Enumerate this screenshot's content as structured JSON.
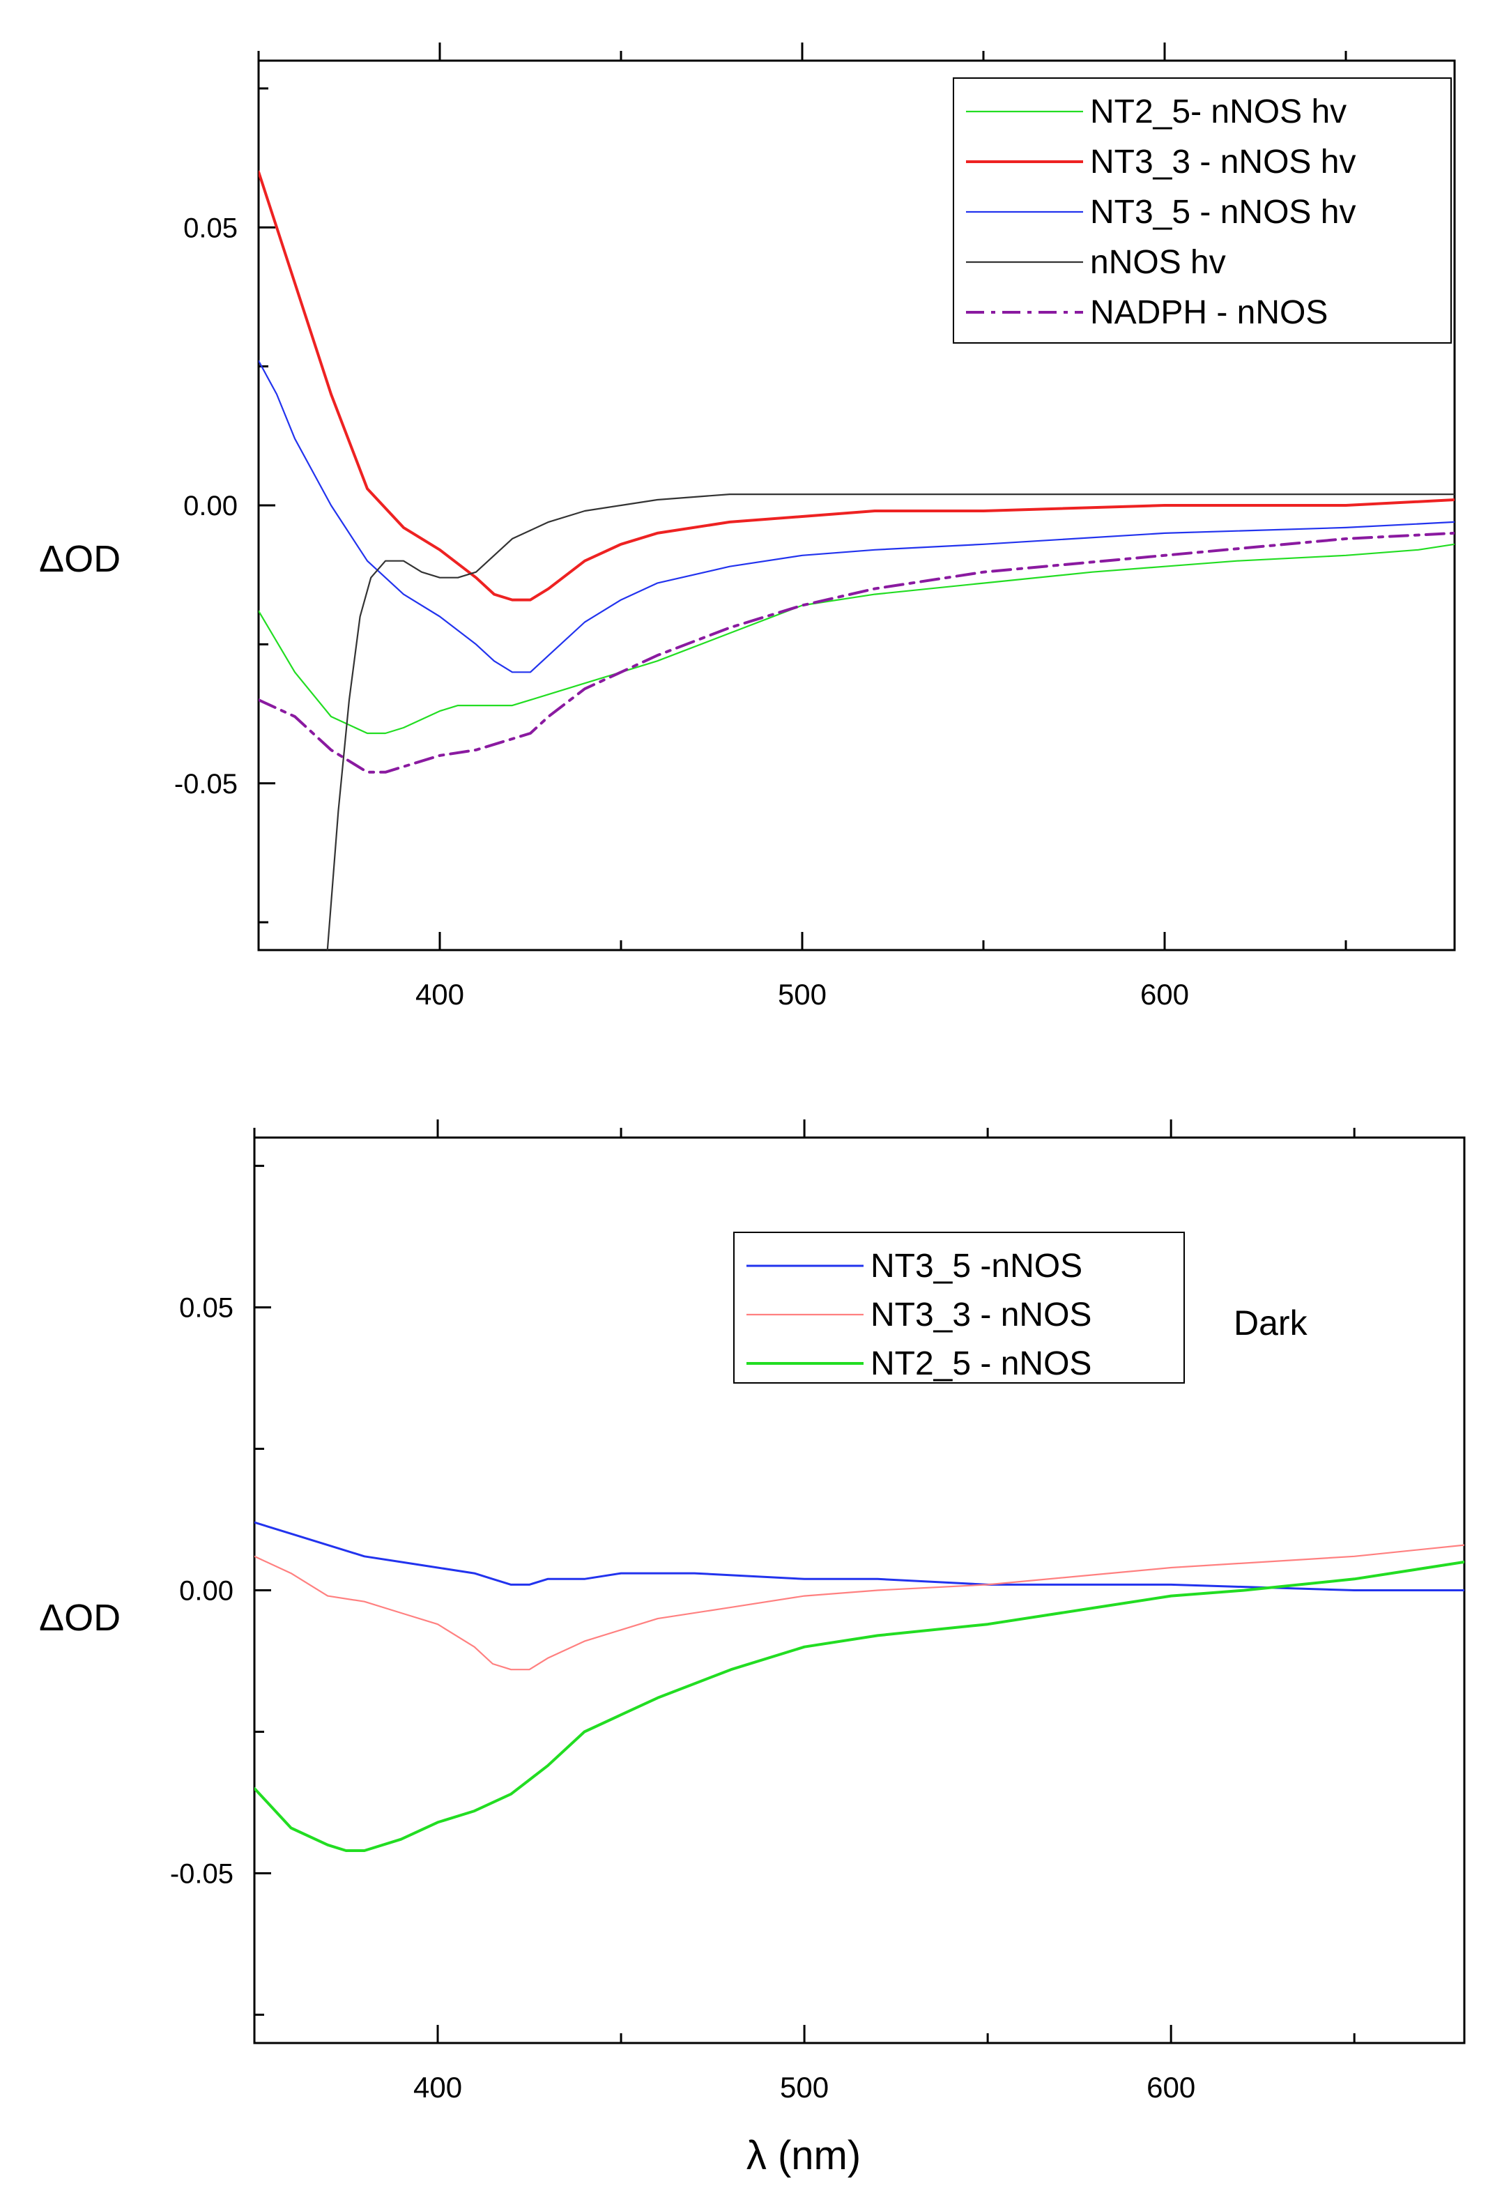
{
  "chart_data": [
    {
      "type": "line",
      "title": "",
      "xlabel": "",
      "ylabel": "ΔOD",
      "xlim": [
        350,
        680
      ],
      "ylim": [
        -0.08,
        0.08
      ],
      "xticks": [
        400,
        500,
        600
      ],
      "yticks": [
        0.05,
        0.0,
        -0.05
      ],
      "ytick_labels": [
        "0.05",
        "0.00",
        "-0.05"
      ],
      "grid": false,
      "legend_position": "top-right",
      "annotation": "",
      "series": [
        {
          "name": "NT2_5- nNOS hv",
          "color": "#22dd22",
          "style": "solid",
          "width": "thin",
          "x": [
            350,
            360,
            370,
            380,
            385,
            390,
            400,
            405,
            410,
            420,
            430,
            440,
            450,
            460,
            480,
            500,
            520,
            550,
            580,
            600,
            620,
            650,
            670,
            680
          ],
          "y": [
            -0.019,
            -0.03,
            -0.038,
            -0.041,
            -0.041,
            -0.04,
            -0.037,
            -0.036,
            -0.036,
            -0.036,
            -0.034,
            -0.032,
            -0.03,
            -0.028,
            -0.023,
            -0.018,
            -0.016,
            -0.014,
            -0.012,
            -0.011,
            -0.01,
            -0.009,
            -0.008,
            -0.007
          ]
        },
        {
          "name": "NT3_3 - nNOS hv",
          "color": "#ee2222",
          "style": "solid",
          "width": "thick",
          "x": [
            350,
            355,
            360,
            370,
            380,
            390,
            400,
            410,
            415,
            420,
            425,
            430,
            440,
            450,
            460,
            480,
            500,
            520,
            550,
            600,
            650,
            680
          ],
          "y": [
            0.06,
            0.05,
            0.04,
            0.02,
            0.003,
            -0.004,
            -0.008,
            -0.013,
            -0.016,
            -0.017,
            -0.017,
            -0.015,
            -0.01,
            -0.007,
            -0.005,
            -0.003,
            -0.002,
            -0.001,
            -0.001,
            0.0,
            0.0,
            0.001
          ]
        },
        {
          "name": "NT3_5 - nNOS hv",
          "color": "#2233ee",
          "style": "solid",
          "width": "thin",
          "x": [
            350,
            355,
            360,
            370,
            380,
            390,
            400,
            410,
            415,
            420,
            425,
            430,
            440,
            450,
            460,
            480,
            500,
            520,
            550,
            600,
            650,
            680
          ],
          "y": [
            0.026,
            0.02,
            0.012,
            0.0,
            -0.01,
            -0.016,
            -0.02,
            -0.025,
            -0.028,
            -0.03,
            -0.03,
            -0.027,
            -0.021,
            -0.017,
            -0.014,
            -0.011,
            -0.009,
            -0.008,
            -0.007,
            -0.005,
            -0.004,
            -0.003
          ]
        },
        {
          "name": "nNOS hv",
          "color": "#333333",
          "style": "solid",
          "width": "thin",
          "x": [
            369,
            372,
            375,
            378,
            381,
            385,
            390,
            395,
            400,
            405,
            410,
            415,
            420,
            430,
            440,
            450,
            460,
            480,
            500,
            550,
            600,
            650,
            680
          ],
          "y": [
            -0.08,
            -0.055,
            -0.035,
            -0.02,
            -0.013,
            -0.01,
            -0.01,
            -0.012,
            -0.013,
            -0.013,
            -0.012,
            -0.009,
            -0.006,
            -0.003,
            -0.001,
            0.0,
            0.001,
            0.002,
            0.002,
            0.002,
            0.002,
            0.002,
            0.002
          ]
        },
        {
          "name": "NADPH - nNOS",
          "color": "#8a1aa0",
          "style": "dashdot",
          "width": "thick",
          "x": [
            350,
            360,
            370,
            380,
            385,
            390,
            400,
            410,
            420,
            425,
            430,
            440,
            450,
            460,
            480,
            500,
            520,
            550,
            600,
            650,
            680
          ],
          "y": [
            -0.035,
            -0.038,
            -0.044,
            -0.048,
            -0.048,
            -0.047,
            -0.045,
            -0.044,
            -0.042,
            -0.041,
            -0.038,
            -0.033,
            -0.03,
            -0.027,
            -0.022,
            -0.018,
            -0.015,
            -0.012,
            -0.009,
            -0.006,
            -0.005
          ]
        }
      ]
    },
    {
      "type": "line",
      "title": "",
      "xlabel": "λ (nm)",
      "ylabel": "ΔOD",
      "xlim": [
        350,
        680
      ],
      "ylim": [
        -0.08,
        0.08
      ],
      "xticks": [
        400,
        500,
        600
      ],
      "yticks": [
        0.05,
        0.0,
        -0.05
      ],
      "ytick_labels": [
        "0.05",
        "0.00",
        "-0.05"
      ],
      "grid": false,
      "legend_position": "top-center",
      "annotation": "Dark",
      "series": [
        {
          "name": "NT3_5 -nNOS",
          "color": "#2233ee",
          "style": "solid",
          "width": "medium",
          "x": [
            350,
            360,
            370,
            380,
            390,
            400,
            410,
            415,
            420,
            425,
            430,
            440,
            450,
            470,
            500,
            520,
            550,
            600,
            650,
            680
          ],
          "y": [
            0.012,
            0.01,
            0.008,
            0.006,
            0.005,
            0.004,
            0.003,
            0.002,
            0.001,
            0.001,
            0.002,
            0.002,
            0.003,
            0.003,
            0.002,
            0.002,
            0.001,
            0.001,
            0.0,
            0.0
          ]
        },
        {
          "name": "NT3_3 - nNOS",
          "color": "#ff8080",
          "style": "solid",
          "width": "thin",
          "x": [
            350,
            360,
            370,
            380,
            390,
            400,
            410,
            415,
            420,
            425,
            430,
            440,
            450,
            460,
            480,
            500,
            520,
            550,
            600,
            650,
            680
          ],
          "y": [
            0.006,
            0.003,
            -0.001,
            -0.002,
            -0.004,
            -0.006,
            -0.01,
            -0.013,
            -0.014,
            -0.014,
            -0.012,
            -0.009,
            -0.007,
            -0.005,
            -0.003,
            -0.001,
            0.0,
            0.001,
            0.004,
            0.006,
            0.008
          ]
        },
        {
          "name": "NT2_5 - nNOS",
          "color": "#22dd22",
          "style": "solid",
          "width": "thick",
          "x": [
            350,
            360,
            370,
            375,
            380,
            390,
            400,
            410,
            420,
            430,
            440,
            450,
            460,
            480,
            500,
            520,
            550,
            580,
            600,
            620,
            650,
            680
          ],
          "y": [
            -0.035,
            -0.042,
            -0.045,
            -0.046,
            -0.046,
            -0.044,
            -0.041,
            -0.039,
            -0.036,
            -0.031,
            -0.025,
            -0.022,
            -0.019,
            -0.014,
            -0.01,
            -0.008,
            -0.006,
            -0.003,
            -0.001,
            0.0,
            0.002,
            0.005
          ]
        }
      ]
    }
  ]
}
